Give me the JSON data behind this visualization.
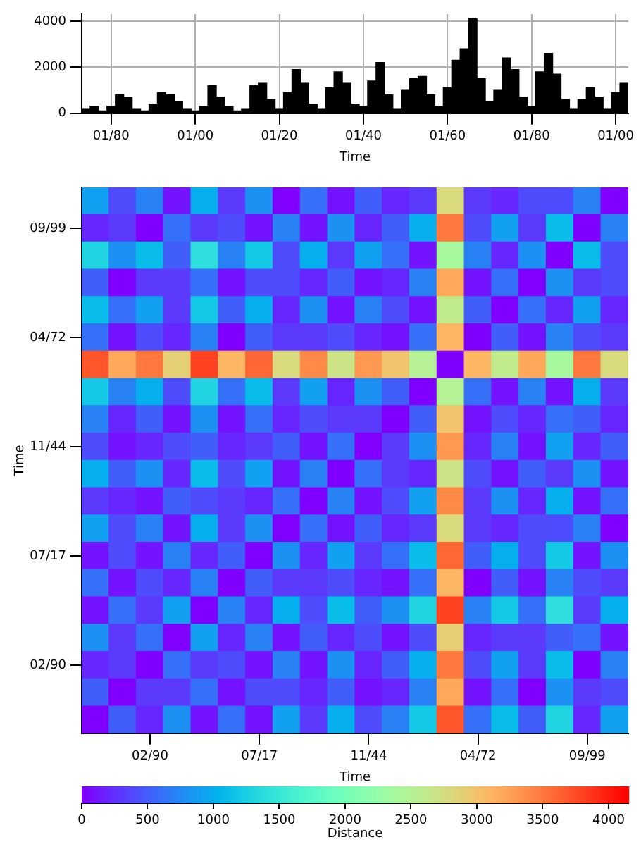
{
  "chart_data": [
    {
      "type": "bar",
      "xlabel": "Time",
      "color": "#000000",
      "ylim": [
        0,
        4300
      ],
      "yticks": [
        0,
        2000,
        4000
      ],
      "grid": true,
      "legend": false,
      "categories": [
        null,
        null,
        null,
        "01/80",
        null,
        null,
        null,
        null,
        null,
        null,
        null,
        null,
        null,
        "01/00",
        null,
        null,
        null,
        null,
        null,
        null,
        null,
        null,
        null,
        "01/20",
        null,
        null,
        null,
        null,
        null,
        null,
        null,
        null,
        null,
        "01/40",
        null,
        null,
        null,
        null,
        null,
        null,
        null,
        null,
        null,
        "01/60",
        null,
        null,
        null,
        null,
        null,
        null,
        null,
        null,
        null,
        "01/80",
        null,
        null,
        null,
        null,
        null,
        null,
        null,
        null,
        null,
        "01/00",
        null
      ],
      "values": [
        200,
        300,
        100,
        300,
        800,
        700,
        200,
        100,
        400,
        900,
        800,
        500,
        200,
        100,
        300,
        1200,
        700,
        300,
        100,
        200,
        1200,
        1300,
        600,
        200,
        900,
        1900,
        1300,
        400,
        200,
        1100,
        1800,
        1300,
        400,
        300,
        1400,
        2200,
        800,
        200,
        1000,
        1500,
        1600,
        800,
        300,
        1100,
        2300,
        2800,
        4100,
        1500,
        500,
        1000,
        2400,
        1900,
        700,
        300,
        1800,
        2600,
        1700,
        600,
        200,
        600,
        1100,
        700,
        200,
        900,
        1300
      ]
    },
    {
      "type": "heatmap",
      "xlabel": "Time",
      "ylabel": "Time",
      "clabel": "Distance",
      "clim": [
        0,
        4150
      ],
      "cticks": [
        0,
        500,
        1000,
        1500,
        2000,
        2500,
        3000,
        3500,
        4000
      ],
      "legend": false,
      "categories": [
        null,
        null,
        "02/90",
        null,
        null,
        null,
        "07/17",
        null,
        null,
        null,
        "11/44",
        null,
        null,
        null,
        "04/72",
        null,
        null,
        null,
        "09/99",
        null
      ],
      "y_categories": [
        null,
        "09/99",
        null,
        null,
        null,
        "04/72",
        null,
        null,
        null,
        "11/44",
        null,
        null,
        null,
        "07/17",
        null,
        null,
        null,
        "02/90",
        null,
        null
      ],
      "cells": [
        [
          900,
          400,
          700,
          100,
          1000,
          300,
          800,
          0,
          600,
          100,
          500,
          200,
          300,
          2800,
          300,
          200,
          400,
          400,
          700,
          0
        ],
        [
          200,
          300,
          0,
          600,
          300,
          400,
          100,
          700,
          100,
          800,
          200,
          500,
          1000,
          3500,
          400,
          900,
          300,
          1100,
          0,
          700
        ],
        [
          1300,
          800,
          1100,
          500,
          1400,
          700,
          1200,
          400,
          1000,
          300,
          900,
          600,
          100,
          2400,
          700,
          200,
          800,
          0,
          1100,
          400
        ],
        [
          500,
          0,
          300,
          300,
          600,
          100,
          400,
          400,
          200,
          500,
          100,
          200,
          700,
          3200,
          100,
          600,
          0,
          800,
          300,
          400
        ],
        [
          1100,
          600,
          900,
          300,
          1200,
          500,
          1000,
          200,
          800,
          100,
          700,
          400,
          100,
          2600,
          500,
          0,
          600,
          200,
          900,
          200
        ],
        [
          600,
          100,
          400,
          200,
          700,
          0,
          500,
          300,
          300,
          400,
          200,
          100,
          600,
          3100,
          0,
          500,
          100,
          700,
          400,
          300
        ],
        [
          3700,
          3200,
          3500,
          2900,
          3800,
          3100,
          3600,
          2800,
          3400,
          2700,
          3300,
          3000,
          2500,
          0,
          3100,
          2600,
          3200,
          2400,
          3500,
          2800
        ],
        [
          1200,
          700,
          1000,
          400,
          1300,
          600,
          1100,
          300,
          900,
          200,
          800,
          500,
          0,
          2500,
          600,
          100,
          700,
          100,
          1000,
          300
        ],
        [
          700,
          200,
          500,
          100,
          800,
          100,
          600,
          200,
          400,
          300,
          300,
          0,
          500,
          3000,
          100,
          400,
          200,
          600,
          500,
          200
        ],
        [
          400,
          100,
          200,
          400,
          500,
          200,
          300,
          500,
          100,
          600,
          0,
          300,
          800,
          3300,
          200,
          700,
          100,
          900,
          200,
          500
        ],
        [
          1000,
          500,
          800,
          200,
          1100,
          400,
          900,
          100,
          700,
          0,
          600,
          300,
          200,
          2700,
          400,
          100,
          500,
          300,
          800,
          100
        ],
        [
          300,
          200,
          100,
          500,
          400,
          300,
          200,
          600,
          0,
          700,
          100,
          400,
          900,
          3400,
          300,
          800,
          200,
          1000,
          100,
          600
        ],
        [
          900,
          400,
          700,
          100,
          1000,
          300,
          800,
          0,
          600,
          100,
          500,
          200,
          300,
          2800,
          300,
          200,
          400,
          400,
          700,
          0
        ],
        [
          100,
          400,
          100,
          700,
          200,
          500,
          0,
          800,
          200,
          900,
          300,
          600,
          1100,
          3600,
          500,
          1000,
          400,
          1200,
          100,
          800
        ],
        [
          600,
          100,
          400,
          200,
          700,
          0,
          500,
          300,
          300,
          400,
          200,
          100,
          600,
          3100,
          0,
          500,
          100,
          700,
          400,
          300
        ],
        [
          100,
          600,
          300,
          900,
          0,
          700,
          200,
          1000,
          400,
          1100,
          500,
          800,
          1300,
          3800,
          700,
          1200,
          600,
          1400,
          300,
          1000
        ],
        [
          800,
          300,
          600,
          0,
          900,
          200,
          700,
          100,
          500,
          200,
          400,
          100,
          400,
          2900,
          200,
          300,
          300,
          500,
          600,
          100
        ],
        [
          200,
          300,
          0,
          600,
          300,
          400,
          100,
          700,
          100,
          800,
          200,
          500,
          1000,
          3500,
          400,
          900,
          300,
          1100,
          0,
          700
        ],
        [
          500,
          0,
          300,
          300,
          600,
          100,
          400,
          400,
          200,
          500,
          100,
          200,
          700,
          3200,
          100,
          600,
          0,
          800,
          300,
          400
        ],
        [
          0,
          500,
          200,
          800,
          100,
          600,
          100,
          900,
          300,
          1000,
          400,
          700,
          1200,
          3700,
          600,
          1100,
          500,
          1300,
          200,
          900
        ]
      ]
    }
  ]
}
